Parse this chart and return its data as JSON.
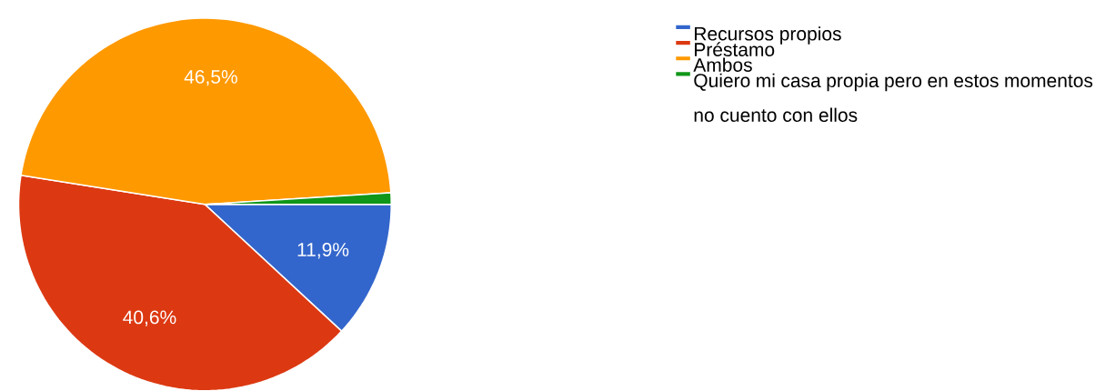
{
  "chart_data": {
    "type": "pie",
    "categories": [
      "Recursos propios",
      "Préstamo",
      "Ambos",
      "Quiero mi casa propia pero en estos momentos no cuento con ellos"
    ],
    "values": [
      11.9,
      40.6,
      46.5,
      1.0
    ],
    "colors": [
      "#3366cc",
      "#dc3912",
      "#ff9900",
      "#109618"
    ],
    "value_labels": [
      "11,9%",
      "40,6%",
      "46,5%",
      null
    ],
    "legend": "right"
  }
}
